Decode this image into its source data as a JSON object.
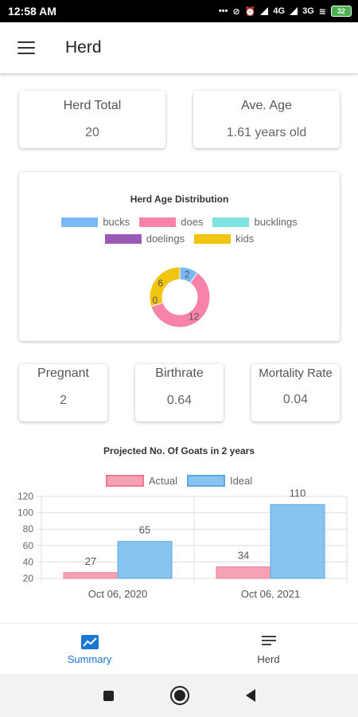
{
  "status_bar": {
    "time": "12:58 AM",
    "net1": "4G",
    "net2": "3G",
    "battery": "32"
  },
  "app_bar": {
    "title": "Herd"
  },
  "stats_top": [
    {
      "label": "Herd Total",
      "value": "20"
    },
    {
      "label": "Ave. Age",
      "value": "1.61 years old"
    }
  ],
  "age_chart": {
    "title": "Herd Age Distribution",
    "legend": [
      {
        "label": "bucks",
        "color": "#7ab8f5"
      },
      {
        "label": "does",
        "color": "#f783a8"
      },
      {
        "label": "bucklings",
        "color": "#7fe3e0"
      },
      {
        "label": "doelings",
        "color": "#9b59b6"
      },
      {
        "label": "kids",
        "color": "#f1c40f"
      }
    ]
  },
  "stats_mid": [
    {
      "label": "Pregnant",
      "value": "2"
    },
    {
      "label": "Birthrate",
      "value": "0.64"
    },
    {
      "label": "Mortality Rate",
      "value": "0.04"
    }
  ],
  "projection_chart": {
    "title": "Projected No. Of Goats in 2 years",
    "legend": [
      {
        "label": "Actual",
        "color": "#f7a1b5"
      },
      {
        "label": "Ideal",
        "color": "#88c4ef"
      }
    ]
  },
  "chart_data": [
    {
      "type": "pie",
      "title": "Herd Age Distribution",
      "labels": [
        "bucks",
        "does",
        "bucklings",
        "doelings",
        "kids"
      ],
      "values": [
        2,
        12,
        0,
        0,
        6
      ],
      "donut": true
    },
    {
      "type": "bar",
      "title": "Projected No. Of Goats in 2 years",
      "categories": [
        "Oct 06, 2020",
        "Oct 06, 2021"
      ],
      "series": [
        {
          "name": "Actual",
          "values": [
            27,
            34
          ]
        },
        {
          "name": "Ideal",
          "values": [
            65,
            110
          ]
        }
      ],
      "yticks": [
        20,
        40,
        60,
        80,
        100,
        120
      ],
      "ylim": [
        20,
        120
      ],
      "grid": true,
      "legend": "top"
    }
  ],
  "bottom_nav": [
    {
      "label": "Summary",
      "active": true
    },
    {
      "label": "Herd",
      "active": false
    }
  ]
}
